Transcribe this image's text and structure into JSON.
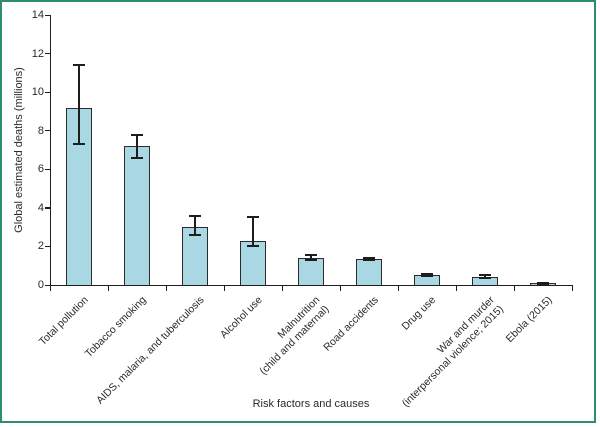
{
  "chart_data": {
    "type": "bar",
    "title": "",
    "xlabel": "Risk factors and causes",
    "ylabel": "Global estimated deaths (millions)",
    "ylim": [
      0,
      14
    ],
    "yticks": [
      0,
      2,
      4,
      6,
      8,
      10,
      12,
      14
    ],
    "grid": false,
    "legend": "none",
    "bar_fill_color": "#a9d8e4",
    "bar_edge_color": "#2b2b2b",
    "axis_color": "#1d1d1b",
    "frame_border_color": "#2f8c6f",
    "categories": [
      "Total pollution",
      "Tobacco smoking",
      "AIDS, malaria, and tuberculosis",
      "Alcohol use",
      "Malnutrition (child and maternal)",
      "Road accidents",
      "Drug use",
      "War and murder (interpersonal violence; 2015)",
      "Ebola (2015)"
    ],
    "category_label_lines": [
      [
        "Total pollution"
      ],
      [
        "Tobacco smoking"
      ],
      [
        "AIDS, malaria, and tuberculosis"
      ],
      [
        "Alcohol use"
      ],
      [
        "Malnutrition",
        "(child and maternal)"
      ],
      [
        "Road accidents"
      ],
      [
        "Drug use"
      ],
      [
        "War and murder",
        "(interpersonal violence; 2015)"
      ],
      [
        "Ebola (2015)"
      ]
    ],
    "values": [
      9.2,
      7.2,
      3.0,
      2.3,
      1.4,
      1.35,
      0.5,
      0.4,
      0.08
    ],
    "error_low": [
      7.3,
      6.6,
      2.6,
      2.0,
      1.3,
      1.3,
      0.45,
      0.35,
      0.05
    ],
    "error_high": [
      11.4,
      7.8,
      3.6,
      3.55,
      1.55,
      1.42,
      0.55,
      0.5,
      0.12
    ]
  }
}
